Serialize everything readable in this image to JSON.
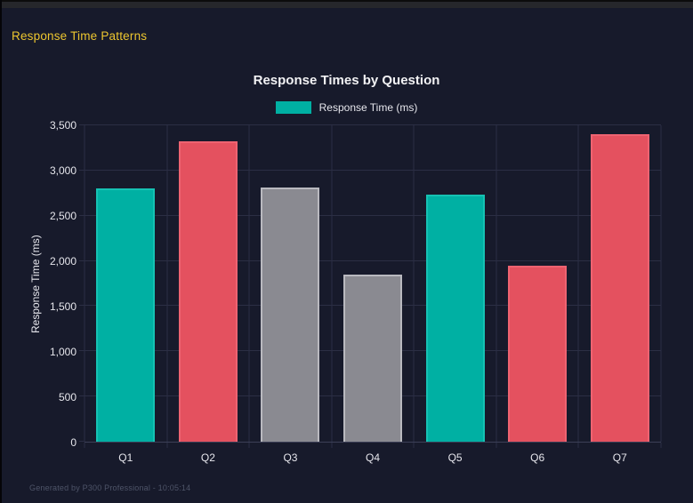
{
  "header": {
    "title": "Response Time Patterns"
  },
  "footer": {
    "text": "Generated by P300 Professional - 10:05:14"
  },
  "colors": {
    "page_bg": "#171a2b",
    "header_strip": "#26272b",
    "accent_yellow": "#edc62f",
    "grid": "#2b2e44",
    "axis_line": "#3c4057",
    "text_primary": "#f2f2f4",
    "text_axis": "#e6e6ec",
    "text_footer": "#4e5468"
  },
  "chart_data": {
    "type": "bar",
    "title": "Response Times by Question",
    "legend": [
      {
        "label": "Response Time (ms)",
        "color": "#00b0a3"
      }
    ],
    "legend_position": "top",
    "categories": [
      "Q1",
      "Q2",
      "Q3",
      "Q4",
      "Q5",
      "Q6",
      "Q7"
    ],
    "series": [
      {
        "name": "Response Time (ms)",
        "values": [
          2800,
          3320,
          2810,
          1850,
          2730,
          1950,
          3400
        ]
      }
    ],
    "bar_colors": [
      "#00b0a3",
      "#e4515f",
      "#8a8a91",
      "#8a8a91",
      "#00b0a3",
      "#e4515f",
      "#e4515f"
    ],
    "bar_border_colors": [
      "#16c2b3",
      "#ee6371",
      "#b9b9bf",
      "#b9b9bf",
      "#16c2b3",
      "#ee6371",
      "#ee6371"
    ],
    "xlabel": "",
    "ylabel": "Response Time (ms)",
    "ylim": [
      0,
      3500
    ],
    "ytick_values": [
      0,
      500,
      1000,
      1500,
      2000,
      2500,
      3000,
      3500
    ],
    "ytick_labels": [
      "0",
      "500",
      "1,000",
      "1,500",
      "2,000",
      "2,500",
      "3,000",
      "3,500"
    ],
    "grid": true
  }
}
